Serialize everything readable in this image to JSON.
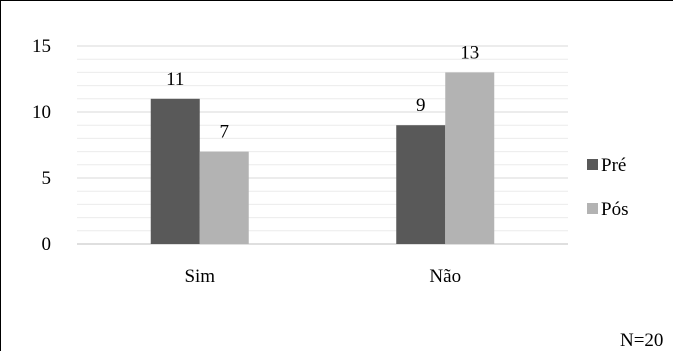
{
  "chart_data": {
    "type": "bar",
    "categories": [
      "Sim",
      "Não"
    ],
    "series": [
      {
        "name": "Pré",
        "values": [
          11,
          9
        ],
        "color": "#595959"
      },
      {
        "name": "Pós",
        "values": [
          7,
          13
        ],
        "color": "#b3b3b3"
      }
    ],
    "ylim": [
      0,
      15
    ],
    "y_ticks": [
      0,
      5,
      10,
      15
    ],
    "grid": true,
    "legend_position": "right",
    "annotation": "N=20"
  }
}
